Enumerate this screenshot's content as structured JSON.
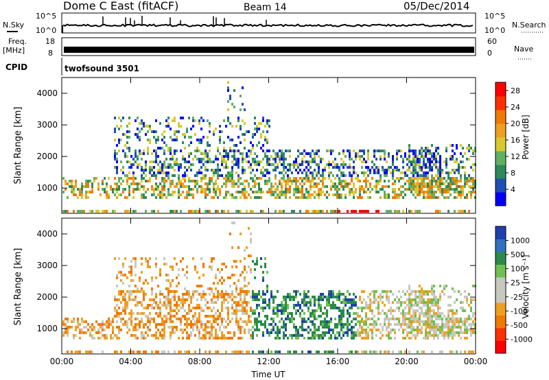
{
  "header": {
    "station": "Dome C East (fitACF)",
    "beam": "Beam 14",
    "date": "05/Dec/2014"
  },
  "noise_panel": {
    "left_label": "N.Sky",
    "right_label": "N.Search",
    "ticks": [
      "10^5",
      "10^0"
    ]
  },
  "freq_panel": {
    "left_label_1": "Freq.",
    "left_label_2": "[MHz]",
    "left_ticks": [
      "18",
      "8"
    ],
    "right_label": "Nave",
    "right_ticks": [
      "60",
      "0"
    ]
  },
  "cpid_panel": {
    "label": "CPID",
    "text": "twofsound 3501"
  },
  "colors": {
    "power": [
      "#0000ff",
      "#1f4fb4",
      "#2d8a5a",
      "#5fb060",
      "#d9c830",
      "#f0a020",
      "#f07a00",
      "#ff3000",
      "#ff0000"
    ],
    "velocity": [
      "#2040b0",
      "#3070c0",
      "#2a8a4a",
      "#6fc050",
      "#c8c8c0",
      "#c8c8c0",
      "#f0a020",
      "#f07a00",
      "#ff3000",
      "#ff0000"
    ]
  },
  "chart_data": [
    {
      "type": "heatmap",
      "name": "Power",
      "xlabel": "",
      "ylabel": "Slant Range [km]",
      "xlim": [
        0,
        24
      ],
      "ylim": [
        200,
        4500
      ],
      "xticks": [
        0,
        4,
        8,
        12,
        16,
        20,
        24
      ],
      "yticks": [
        1000,
        2000,
        3000,
        4000
      ],
      "ytick_labels": [
        "1000",
        "2000",
        "3000",
        "4000"
      ],
      "colorbar": {
        "label": "Power [dB]",
        "ticks": [
          "4",
          "8",
          "12",
          "16",
          "20",
          "24",
          "28"
        ],
        "range": [
          0,
          30
        ]
      }
    },
    {
      "type": "heatmap",
      "name": "Velocity",
      "xlabel": "Time UT",
      "ylabel": "Slant Range [km]",
      "xlim": [
        0,
        24
      ],
      "ylim": [
        200,
        4500
      ],
      "xticks": [
        0,
        4,
        8,
        12,
        16,
        20,
        24
      ],
      "xtick_labels": [
        "00:00",
        "04:00",
        "08:00",
        "12:00",
        "16:00",
        "20:00",
        "00:00"
      ],
      "yticks": [
        1000,
        2000,
        3000,
        4000
      ],
      "ytick_labels": [
        "1000",
        "2000",
        "3000",
        "4000"
      ],
      "colorbar": {
        "label": "Velocity [m s⁻¹]",
        "ticks": [
          "1000",
          "500",
          "100",
          "25",
          "-25",
          "-100",
          "-500",
          "-1000"
        ]
      }
    }
  ]
}
